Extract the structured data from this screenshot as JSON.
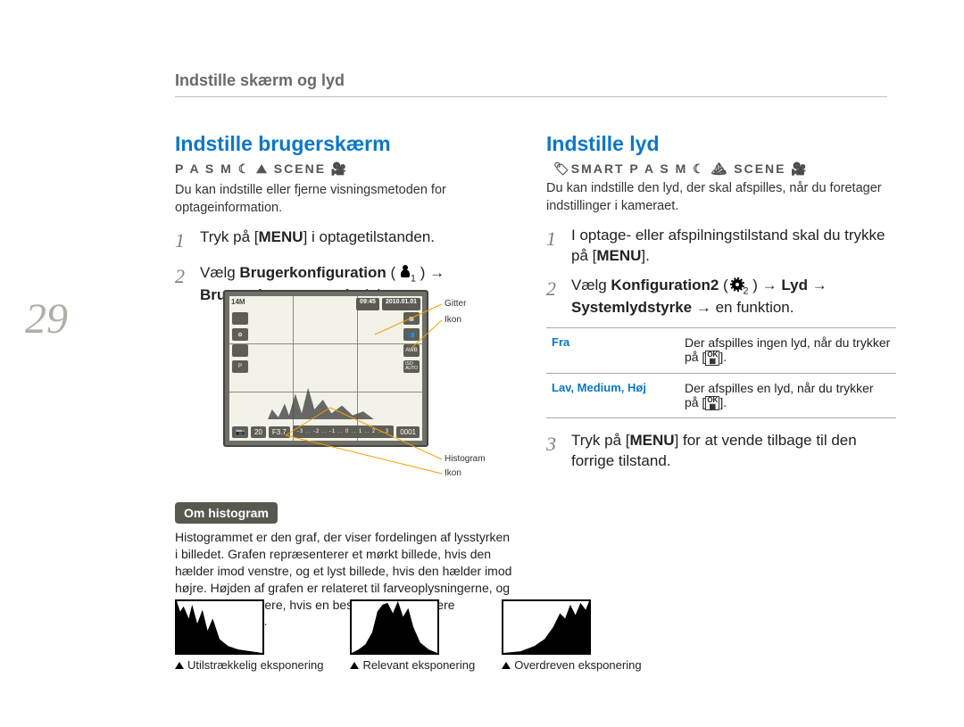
{
  "page_number": "29",
  "header": "Indstille skærm og lyd",
  "left": {
    "title": "Indstille brugerskærm",
    "modes": "P A S M ☾ ⛰ SCENE 🎥",
    "intro": "Du kan indstille eller fjerne visningsmetoden for optageinformation.",
    "steps": [
      {
        "n": "1",
        "html": "Tryk på [<b>MENU</b>] i optagetilstanden."
      },
      {
        "n": "2",
        "html": "Vælg <b>Brugerkonfiguration</b> ( <span class='person-icon' data-name='person-icon' data-interactable='false'></span><span class='sub'>1</span> ) → <b>Brugerskærm</b> → en funktion."
      }
    ],
    "lcd": {
      "size_label": "14M",
      "time": "09:45",
      "date": "2010.01.01",
      "left_icons": [
        "",
        "✿",
        "",
        "P"
      ],
      "right_icons": [
        "📷",
        "👥",
        "AWB",
        "ISO\nAUTO"
      ],
      "shutter": "20",
      "fnum": "F3.7",
      "exp_scale": "-3 .. -2 .. -1 .. 0 .. 1 .. 2 .. 3",
      "count": "0001",
      "callouts": {
        "gitter": "Gitter",
        "ikon": "Ikon",
        "histogram": "Histogram",
        "ikon2": "Ikon"
      }
    },
    "about_histogram_label": "Om histogram",
    "about_histogram_body": "Histogrammet er den graf, der viser fordelingen af lysstyrken i billedet. Grafen repræsenterer et mørkt billede, hvis den hælder imod venstre, og et lyst billede, hvis den hælder imod højre. Højden af grafen er relateret til farveoplysningerne, og grafen bliver højere, hvis en bestemt farve er mere tilstedeværende.",
    "examples": [
      {
        "cap": "Utilstrækkelig eksponering",
        "shape": "left"
      },
      {
        "cap": "Relevant eksponering",
        "shape": "mid"
      },
      {
        "cap": "Overdreven eksponering",
        "shape": "right"
      }
    ]
  },
  "right": {
    "title": "Indstille lyd",
    "modes": "🏷SMART P A S M ☾ ⛰ SCENE 🎥",
    "intro": "Du kan indstille den lyd, der skal afspilles, når du foretager indstillinger i kameraet.",
    "steps": [
      {
        "n": "1",
        "html": "I optage- eller afspilningstilstand skal du trykke på [<b>MENU</b>]."
      },
      {
        "n": "2",
        "html": "Vælg <b>Konfiguration2</b> ( <span class='gear-icon' data-name='gear-icon' data-interactable='false'></span><span class='sub'>2</span> ) → <b>Lyd</b> → <b>Systemlydstyrke</b> → en funktion."
      },
      {
        "n": "3",
        "html": "Tryk på [<b>MENU</b>] for at vende tilbage til den forrige tilstand."
      }
    ],
    "table": [
      {
        "k": "Fra",
        "v": "Der afspilles ingen lyd, når du trykker på [",
        "ok": "OK",
        "v2": "]."
      },
      {
        "k": "Lav, Medium, Høj",
        "v": "Der afspilles en lyd, når du trykker på [",
        "ok": "OK",
        "v2": "]."
      }
    ]
  }
}
